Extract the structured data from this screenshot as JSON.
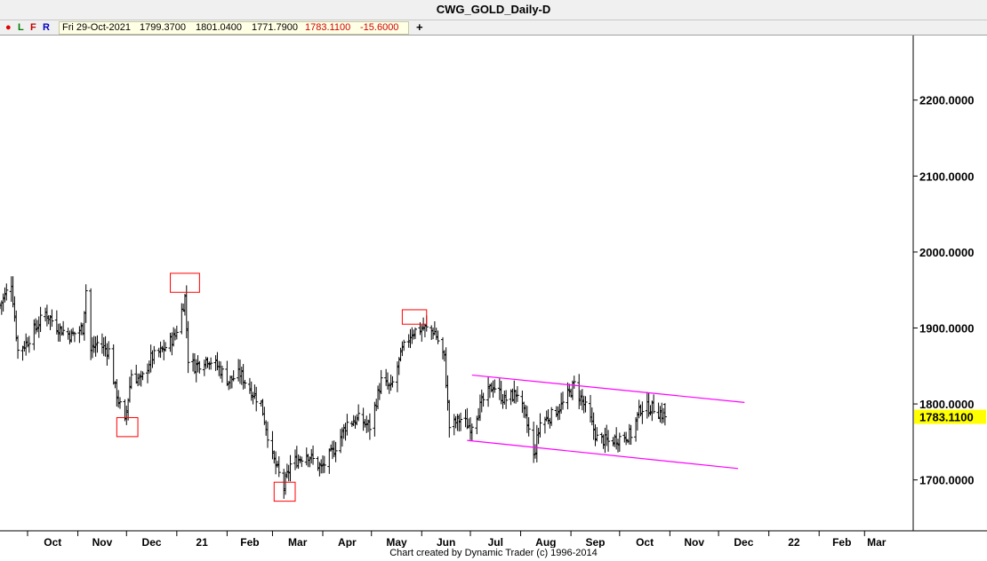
{
  "window": {
    "title": "CWG_GOLD_Daily-D"
  },
  "toolbar": {
    "dot_color": "#e00000",
    "btn_l": "L",
    "btn_f": "F",
    "btn_r": "R",
    "date": "Fri 29-Oct-2021",
    "open": "1799.3700",
    "high": "1801.0400",
    "low": "1771.7900",
    "close": "1783.1100",
    "change": "-15.6000",
    "plus": "+"
  },
  "chart_data": {
    "type": "ohlc",
    "title": "CWG_GOLD_Daily-D",
    "y_ticks": [
      "1700.0000",
      "1800.0000",
      "1900.0000",
      "2000.0000",
      "2100.0000",
      "2200.0000"
    ],
    "x_labels": [
      "Oct",
      "Nov",
      "Dec",
      "21",
      "Feb",
      "Mar",
      "Apr",
      "May",
      "Jun",
      "Jul",
      "Aug",
      "Sep",
      "Oct",
      "Nov",
      "Dec",
      "22",
      "Feb",
      "Mar"
    ],
    "x_range": [
      "2020-09-14",
      "2022-03-31"
    ],
    "y_range": [
      1633,
      2285
    ],
    "last_price": "1783.1100",
    "last_price_color": "#ffff00",
    "grid": false,
    "series_color": "#000000",
    "price_path": [
      [
        "2020-09-14",
        1930
      ],
      [
        "2020-09-21",
        1960
      ],
      [
        "2020-09-25",
        1870
      ],
      [
        "2020-09-30",
        1880
      ],
      [
        "2020-10-06",
        1900
      ],
      [
        "2020-10-12",
        1920
      ],
      [
        "2020-10-20",
        1900
      ],
      [
        "2020-10-28",
        1890
      ],
      [
        "2020-11-04",
        1900
      ],
      [
        "2020-11-06",
        1950
      ],
      [
        "2020-11-09",
        1870
      ],
      [
        "2020-11-13",
        1880
      ],
      [
        "2020-11-20",
        1870
      ],
      [
        "2020-11-24",
        1820
      ],
      [
        "2020-11-30",
        1775
      ],
      [
        "2020-12-04",
        1840
      ],
      [
        "2020-12-10",
        1830
      ],
      [
        "2020-12-16",
        1860
      ],
      [
        "2020-12-23",
        1870
      ],
      [
        "2020-12-31",
        1890
      ],
      [
        "2021-01-06",
        1940
      ],
      [
        "2021-01-08",
        1860
      ],
      [
        "2021-01-12",
        1850
      ],
      [
        "2021-01-20",
        1860
      ],
      [
        "2021-01-26",
        1850
      ],
      [
        "2021-02-02",
        1830
      ],
      [
        "2021-02-09",
        1840
      ],
      [
        "2021-02-15",
        1820
      ],
      [
        "2021-02-22",
        1800
      ],
      [
        "2021-03-01",
        1730
      ],
      [
        "2021-03-08",
        1690
      ],
      [
        "2021-03-12",
        1720
      ],
      [
        "2021-03-22",
        1735
      ],
      [
        "2021-03-31",
        1715
      ],
      [
        "2021-04-08",
        1740
      ],
      [
        "2021-04-16",
        1775
      ],
      [
        "2021-04-23",
        1780
      ],
      [
        "2021-04-30",
        1770
      ],
      [
        "2021-05-07",
        1830
      ],
      [
        "2021-05-13",
        1820
      ],
      [
        "2021-05-20",
        1870
      ],
      [
        "2021-05-26",
        1895
      ],
      [
        "2021-06-02",
        1900
      ],
      [
        "2021-06-09",
        1895
      ],
      [
        "2021-06-15",
        1860
      ],
      [
        "2021-06-18",
        1770
      ],
      [
        "2021-06-25",
        1780
      ],
      [
        "2021-07-01",
        1770
      ],
      [
        "2021-07-09",
        1805
      ],
      [
        "2021-07-15",
        1825
      ],
      [
        "2021-07-22",
        1805
      ],
      [
        "2021-07-30",
        1815
      ],
      [
        "2021-08-06",
        1765
      ],
      [
        "2021-08-09",
        1730
      ],
      [
        "2021-08-13",
        1775
      ],
      [
        "2021-08-20",
        1785
      ],
      [
        "2021-08-27",
        1800
      ],
      [
        "2021-09-03",
        1825
      ],
      [
        "2021-09-10",
        1795
      ],
      [
        "2021-09-17",
        1755
      ],
      [
        "2021-09-24",
        1750
      ],
      [
        "2021-09-30",
        1755
      ],
      [
        "2021-10-08",
        1760
      ],
      [
        "2021-10-14",
        1795
      ],
      [
        "2021-10-22",
        1795
      ],
      [
        "2021-10-29",
        1783
      ]
    ],
    "trendlines": [
      {
        "color": "#ff00ff",
        "from": [
          "2021-07-02",
          1838
        ],
        "to": [
          "2021-12-17",
          1802
        ]
      },
      {
        "color": "#ff00ff",
        "from": [
          "2021-06-29",
          1752
        ],
        "to": [
          "2021-12-13",
          1715
        ]
      }
    ],
    "boxes": [
      {
        "color": "#ff0000",
        "from": [
          "2020-11-25",
          1757
        ],
        "to": [
          "2020-12-08",
          1782
        ]
      },
      {
        "color": "#ff0000",
        "from": [
          "2020-12-28",
          1947
        ],
        "to": [
          "2021-01-15",
          1972
        ]
      },
      {
        "color": "#ff0000",
        "from": [
          "2021-03-02",
          1672
        ],
        "to": [
          "2021-03-15",
          1697
        ]
      },
      {
        "color": "#ff0000",
        "from": [
          "2021-05-20",
          1905
        ],
        "to": [
          "2021-06-04",
          1924
        ]
      }
    ]
  },
  "footer": {
    "credit": "Chart created by Dynamic Trader  (c) 1996-2014"
  }
}
